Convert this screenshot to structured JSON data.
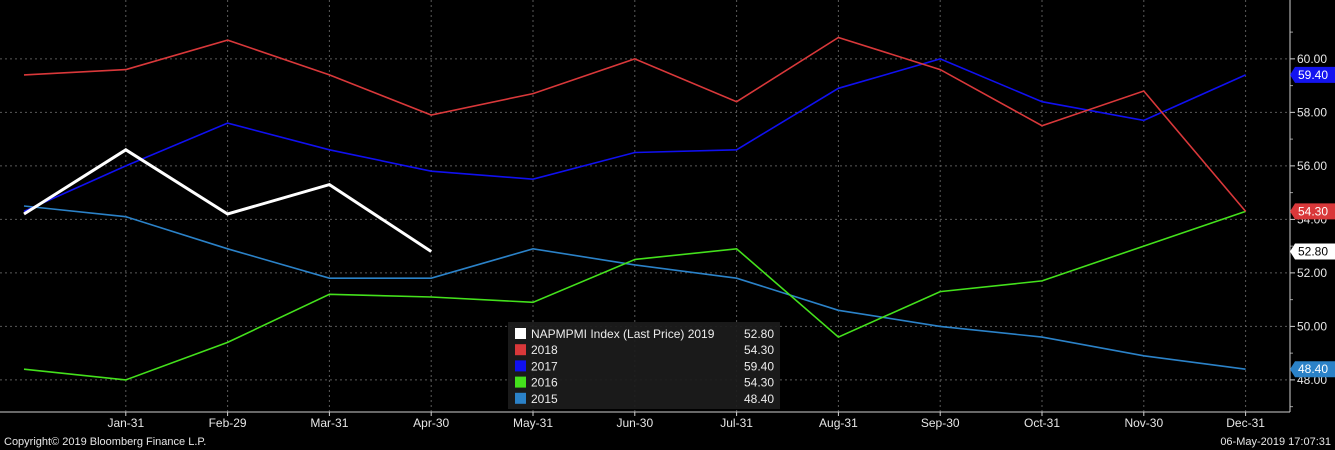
{
  "chart_data": {
    "type": "line",
    "categories": [
      "Jan-31",
      "Feb-29",
      "Mar-31",
      "Apr-30",
      "May-31",
      "Jun-30",
      "Jul-31",
      "Aug-31",
      "Sep-30",
      "Oct-31",
      "Nov-30",
      "Dec-31"
    ],
    "y_ticks": [
      "48.00",
      "50.00",
      "52.00",
      "54.00",
      "56.00",
      "58.00",
      "60.00"
    ],
    "ylim": [
      46.8,
      62.2
    ],
    "grid": true,
    "legend_position": "bottom-center",
    "series": [
      {
        "name": "NAPMPMI Index (Last Price) 2019",
        "last_label": "52.80",
        "color": "#ffffff",
        "x": [
          0,
          1,
          2,
          3,
          4
        ],
        "values": [
          54.2,
          56.6,
          54.2,
          55.3,
          52.8
        ]
      },
      {
        "name": "2018",
        "last_label": "54.30",
        "color": "#d9383a",
        "x": [
          0,
          1,
          2,
          3,
          4,
          5,
          6,
          7,
          8,
          9,
          10,
          11,
          12
        ],
        "values": [
          59.4,
          59.6,
          60.7,
          59.4,
          57.9,
          58.7,
          60.0,
          58.4,
          60.8,
          59.6,
          57.5,
          58.8,
          54.3
        ]
      },
      {
        "name": "2017",
        "last_label": "59.40",
        "color": "#1010f0",
        "x": [
          0,
          1,
          2,
          3,
          4,
          5,
          6,
          7,
          8,
          9,
          10,
          11,
          12
        ],
        "values": [
          54.3,
          56.0,
          57.6,
          56.6,
          55.8,
          55.5,
          56.5,
          56.6,
          58.9,
          60.0,
          58.4,
          57.7,
          59.4
        ]
      },
      {
        "name": "2016",
        "last_label": "54.30",
        "color": "#44e11c",
        "x": [
          0,
          1,
          2,
          3,
          4,
          5,
          6,
          7,
          8,
          9,
          10,
          11,
          12
        ],
        "values": [
          48.4,
          48.0,
          49.4,
          51.2,
          51.1,
          50.9,
          52.5,
          52.9,
          49.6,
          51.3,
          51.7,
          53.0,
          54.3
        ]
      },
      {
        "name": "2015",
        "last_label": "48.40",
        "color": "#2b82c8",
        "x": [
          0,
          1,
          2,
          3,
          4,
          5,
          6,
          7,
          8,
          9,
          10,
          11,
          12
        ],
        "values": [
          54.5,
          54.1,
          52.9,
          51.8,
          51.8,
          52.9,
          52.3,
          51.8,
          50.6,
          50.0,
          49.6,
          48.9,
          48.4
        ]
      }
    ],
    "end_labels": [
      {
        "text": "59.40",
        "value": 59.4,
        "bg": "#1414f0",
        "fg": "#ffffff"
      },
      {
        "text": "54.30",
        "value": 54.3,
        "bg": "#d9383a",
        "fg": "#ffffff"
      },
      {
        "text": "52.80",
        "value": 52.8,
        "bg": "#ffffff",
        "fg": "#000000"
      },
      {
        "text": "48.40",
        "value": 48.4,
        "bg": "#2b82c8",
        "fg": "#ffffff"
      }
    ]
  },
  "footer": {
    "copyright": "Copyright© 2019 Bloomberg Finance L.P.",
    "timestamp": "06-May-2019 17:07:31"
  }
}
